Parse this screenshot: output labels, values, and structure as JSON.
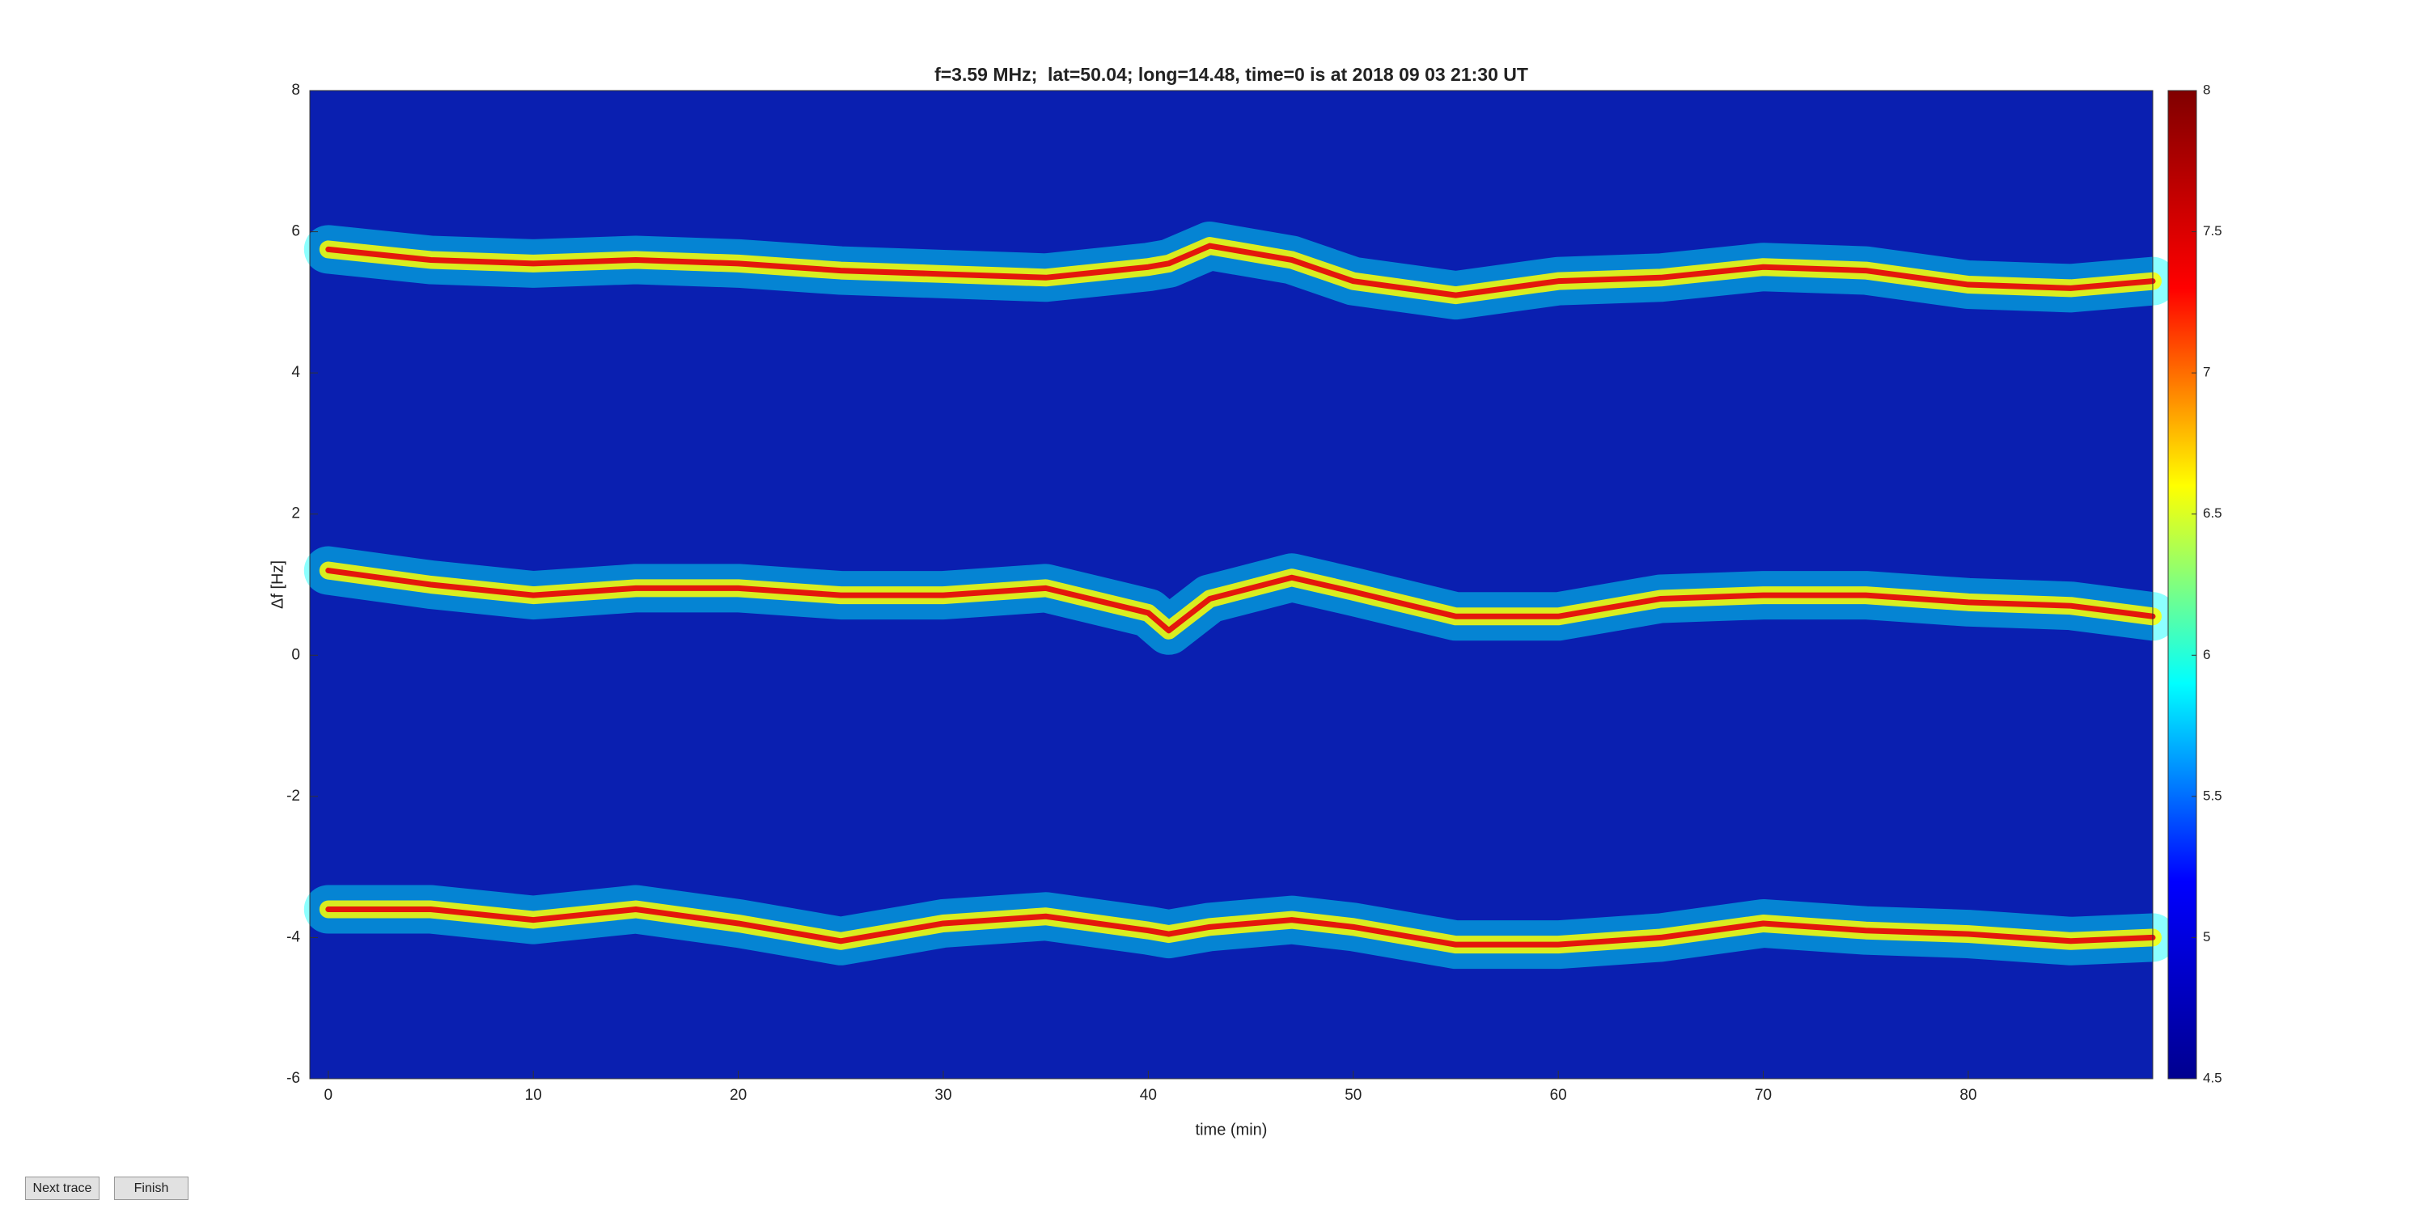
{
  "chart_data": {
    "type": "spectrogram",
    "title": "f=3.59 MHz;  lat=50.04; long=14.48, time=0 is at 2018 09 03 21:30 UT",
    "xlabel": "time (min)",
    "ylabel": "Δf [Hz]",
    "xlim": [
      -0.9,
      89
    ],
    "xticks": [
      0,
      10,
      20,
      30,
      40,
      50,
      60,
      70,
      80
    ],
    "ylim": [
      -6,
      8
    ],
    "yticks": [
      -6,
      -4,
      -2,
      0,
      2,
      4,
      6,
      8
    ],
    "x": [
      0,
      5,
      10,
      15,
      20,
      25,
      30,
      35,
      40,
      41,
      43,
      47,
      50,
      55,
      60,
      65,
      70,
      75,
      80,
      85,
      89
    ],
    "series": [
      {
        "color": "#e4170c",
        "values": [
          5.75,
          5.6,
          5.55,
          5.6,
          5.55,
          5.45,
          5.4,
          5.35,
          5.5,
          5.55,
          5.8,
          5.6,
          5.3,
          5.1,
          5.3,
          5.35,
          5.5,
          5.45,
          5.25,
          5.2,
          5.3
        ]
      },
      {
        "color": "#e4170c",
        "values": [
          1.2,
          1.0,
          0.85,
          0.95,
          0.95,
          0.85,
          0.85,
          0.95,
          0.6,
          0.35,
          0.8,
          1.1,
          0.9,
          0.55,
          0.55,
          0.8,
          0.85,
          0.85,
          0.75,
          0.7,
          0.55
        ]
      },
      {
        "color": "#e4170c",
        "values": [
          -3.6,
          -3.6,
          -3.75,
          -3.6,
          -3.8,
          -4.05,
          -3.8,
          -3.7,
          -3.9,
          -3.95,
          -3.85,
          -3.75,
          -3.85,
          -4.1,
          -4.1,
          -4.0,
          -3.8,
          -3.9,
          -3.95,
          -4.05,
          -4.0
        ]
      }
    ],
    "background": "#0a1fb0",
    "clim": [
      4.5,
      8
    ],
    "cticks": [
      4.5,
      5,
      5.5,
      6,
      6.5,
      7,
      7.5,
      8
    ],
    "colormap": [
      "#00008f",
      "#0000ff",
      "#00ffff",
      "#ffff00",
      "#ff0000",
      "#800000"
    ]
  },
  "buttons": [
    "Next trace",
    "Finish"
  ]
}
